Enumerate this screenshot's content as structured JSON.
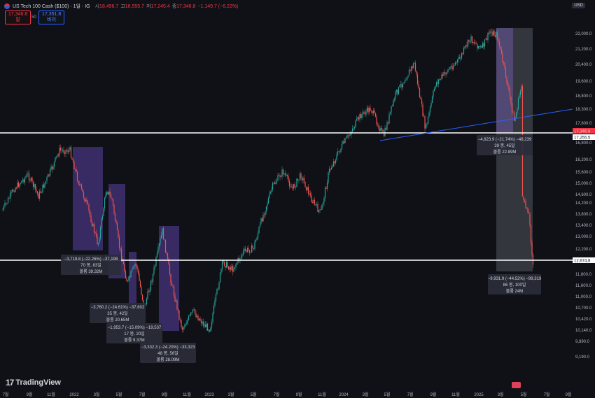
{
  "header": {
    "symbol_title": "US Tech 100 Cash ($100) · 1일 · IG",
    "ohlc": [
      {
        "k": "시",
        "v": "18,496.7"
      },
      {
        "k": "고",
        "v": "18,555.7"
      },
      {
        "k": "저",
        "v": "17,245.4"
      },
      {
        "k": "종",
        "v": "17,346.8"
      },
      {
        "k": "",
        "v": "−1,149.7 (−6.22%)"
      }
    ],
    "sell_price": "17,346.8",
    "sell_label": "팔",
    "buy_price": "17,351.8",
    "buy_label": "바이",
    "spread": "50",
    "currency": "USD"
  },
  "watermark": "TradingView",
  "price_axis": [
    "22,000.0",
    "21,200.0",
    "20,400.0",
    "19,600.0",
    "18,800.0",
    "18,300.0",
    "17,800.0",
    "16,800.0",
    "16,200.0",
    "15,600.0",
    "15,000.0",
    "14,600.0",
    "14,200.0",
    "13,800.0",
    "13,400.0",
    "13,000.0",
    "12,200.0",
    "11,800.0",
    "11,600.0",
    "11,000.0",
    "10,700.0",
    "10,420.0",
    "10,140.0",
    "9,890.0",
    "9,190.0"
  ],
  "current_price_tag": "17,346.8",
  "line_price_tag": "17,255.5",
  "low_line_tag": "12,674.8",
  "time_axis": [
    "7월",
    "9월",
    "11월",
    "2022",
    "3월",
    "5월",
    "7월",
    "9월",
    "11월",
    "2023",
    "3월",
    "5월",
    "7월",
    "9월",
    "11월",
    "2024",
    "3월",
    "5월",
    "7월",
    "9월",
    "11월",
    "2025",
    "3월",
    "5월",
    "7월",
    "9월"
  ],
  "measures": [
    {
      "l1": "−3,719.8 (−22.26%) −37,198",
      "l2": "70 봉, 83일",
      "l3": "볼륨 39.32M"
    },
    {
      "l1": "−3,760.2 (−24.61%) −37,602",
      "l2": "35 봉, 42일",
      "l3": "볼륨 20.65M"
    },
    {
      "l1": "−1,953.7 (−15.09%) −19,537",
      "l2": "17 봉, 20일",
      "l3": "볼륨 9.37M"
    },
    {
      "l1": "−3,332.3 (−24.20%) −33,323",
      "l2": "48 봉, 56일",
      "l3": "볼륨 28.09M"
    },
    {
      "l1": "−4,823.9 (−21.74%) −48,239",
      "l2": "39 봉, 45일",
      "l3": "볼륨 22.89M"
    },
    {
      "l1": "−9,931.9 (−44.52%) −99,319",
      "l2": "86 봉, 100일",
      "l3": "볼륨 24M"
    }
  ],
  "colors": {
    "up": "#26a69a",
    "down": "#ef5350",
    "box": "#5b3fa0",
    "trend": "#2962ff",
    "bg": "#0f1117"
  },
  "chart_data": {
    "type": "candlestick",
    "description_series": "approximate daily close path",
    "x": [
      "2021-07",
      "2021-09",
      "2021-11",
      "2022-01",
      "2022-03",
      "2022-05",
      "2022-07",
      "2022-09",
      "2022-11",
      "2023-01",
      "2023-03",
      "2023-05",
      "2023-07",
      "2023-09",
      "2023-11",
      "2024-01",
      "2024-03",
      "2024-05",
      "2024-07",
      "2024-09",
      "2024-11",
      "2025-01",
      "2025-03",
      "2025-05"
    ],
    "values": [
      14800,
      15300,
      16300,
      16500,
      14300,
      12200,
      12000,
      11200,
      11600,
      10900,
      12500,
      13900,
      15500,
      14700,
      15600,
      16800,
      18300,
      18100,
      19700,
      19400,
      20700,
      21500,
      19800,
      17350
    ],
    "ylim": [
      9190,
      22400
    ],
    "hlines": [
      17255.5,
      12674.8
    ]
  }
}
